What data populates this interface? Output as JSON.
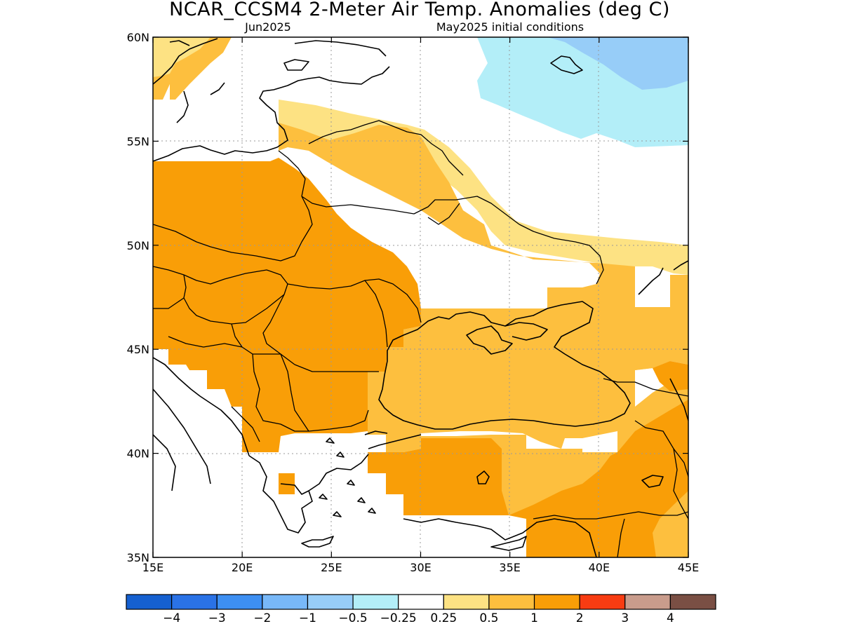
{
  "title": "NCAR_CCSM4 2-Meter Air Temp. Anomalies (deg C)",
  "subtitle_left": "Jun2025",
  "subtitle_right": "May2025 initial conditions",
  "lon_ticks": [
    "15E",
    "20E",
    "25E",
    "30E",
    "35E",
    "40E",
    "45E"
  ],
  "lat_ticks": [
    "60N",
    "55N",
    "50N",
    "45N",
    "40N",
    "35N"
  ],
  "colors": {
    "c_neg4": "#1560d0",
    "c_neg3": "#2a72e6",
    "c_neg2": "#3d8ff2",
    "c_neg1": "#78b8f8",
    "c_neg05": "#97cdf8",
    "c_neg025": "#b3eef8",
    "c_neutral": "#ffffff",
    "c_025": "#fde283",
    "c_05": "#fdbf3e",
    "c_1": "#f99e07",
    "c_2": "#f83c12",
    "c_3": "#c99c8c",
    "c_4": "#7a4f44"
  },
  "colorbar": {
    "boxes": [
      "#1560d0",
      "#2a72e6",
      "#3d8ff2",
      "#78b8f8",
      "#97cdf8",
      "#b3eef8",
      "#ffffff",
      "#fde283",
      "#fdbf3e",
      "#f99e07",
      "#f83c12",
      "#c99c8c",
      "#7a4f44"
    ],
    "labels": [
      "−4",
      "−3",
      "−2",
      "−1",
      "−0.5",
      "−0.25",
      "0.25",
      "0.5",
      "1",
      "2",
      "3",
      "4"
    ]
  }
}
